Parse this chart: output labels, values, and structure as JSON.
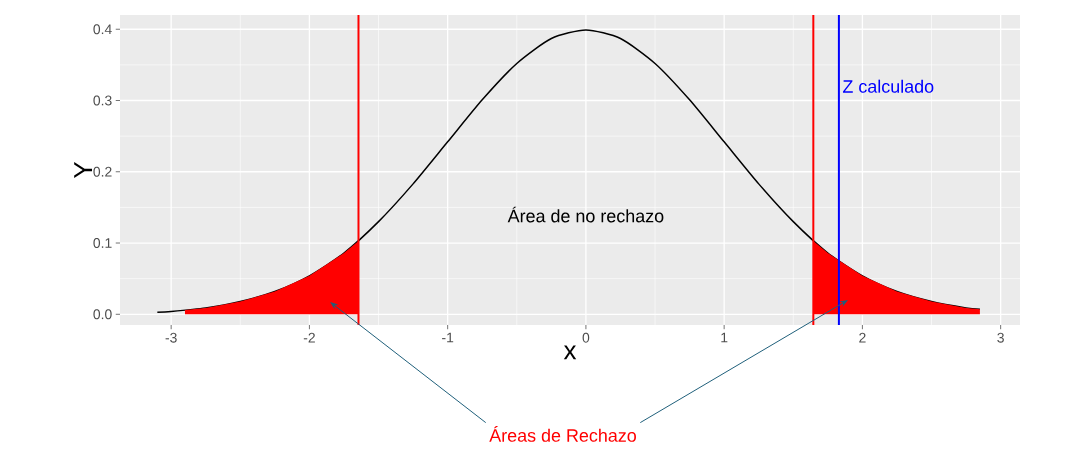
{
  "chart_data": {
    "type": "line",
    "xlabel": "x",
    "ylabel": "Y",
    "xlim": [
      -3.37,
      3.14
    ],
    "ylim": [
      -0.015,
      0.42
    ],
    "xticks": [
      -3,
      -2,
      -1,
      0,
      1,
      2,
      3
    ],
    "yticks": [
      {
        "value": 0,
        "label": "0.0"
      },
      {
        "value": 0.1,
        "label": "0.1"
      },
      {
        "value": 0.2,
        "label": "0.2"
      },
      {
        "value": 0.3,
        "label": "0.3"
      },
      {
        "value": 0.4,
        "label": "0.4"
      }
    ],
    "grid": true,
    "marker": "none",
    "series": [
      {
        "color": "#000000",
        "x": [
          -3.1,
          -3,
          -2.75,
          -2.5,
          -2.25,
          -2,
          -1.75,
          -1.5,
          -1.25,
          -1,
          -0.75,
          -0.5,
          -0.25,
          0,
          0.25,
          0.5,
          0.75,
          1,
          1.25,
          1.5,
          1.75,
          2,
          2.25,
          2.5,
          2.75,
          2.85
        ],
        "values": [
          0.003,
          0.004,
          0.009,
          0.018,
          0.032,
          0.054,
          0.086,
          0.13,
          0.183,
          0.242,
          0.301,
          0.352,
          0.387,
          0.399,
          0.387,
          0.352,
          0.301,
          0.242,
          0.183,
          0.13,
          0.086,
          0.054,
          0.032,
          0.018,
          0.009,
          0.007
        ]
      },
      {
        "type": "area",
        "color": "#ff0000",
        "x": [
          -2.9,
          -2.75,
          -2.5,
          -2.25,
          -2,
          -1.75,
          -1.645
        ],
        "values": [
          0.006,
          0.009,
          0.018,
          0.032,
          0.054,
          0.086,
          0.103
        ]
      },
      {
        "type": "area",
        "color": "#ff0000",
        "x": [
          1.645,
          1.75,
          2,
          2.25,
          2.5,
          2.75,
          2.85
        ],
        "values": [
          0.103,
          0.086,
          0.054,
          0.032,
          0.018,
          0.009,
          0.007
        ]
      }
    ],
    "ref_lines": [
      {
        "axis": "x",
        "value": -1.645,
        "color": "#ff0000"
      },
      {
        "axis": "x",
        "value": 1.645,
        "color": "#ff0000"
      },
      {
        "axis": "x",
        "value": 1.83,
        "color": "#0000ff",
        "label": "Z calculado"
      }
    ],
    "annotations": [
      "Área de no rechazo",
      "Áreas de Rechazo"
    ]
  }
}
